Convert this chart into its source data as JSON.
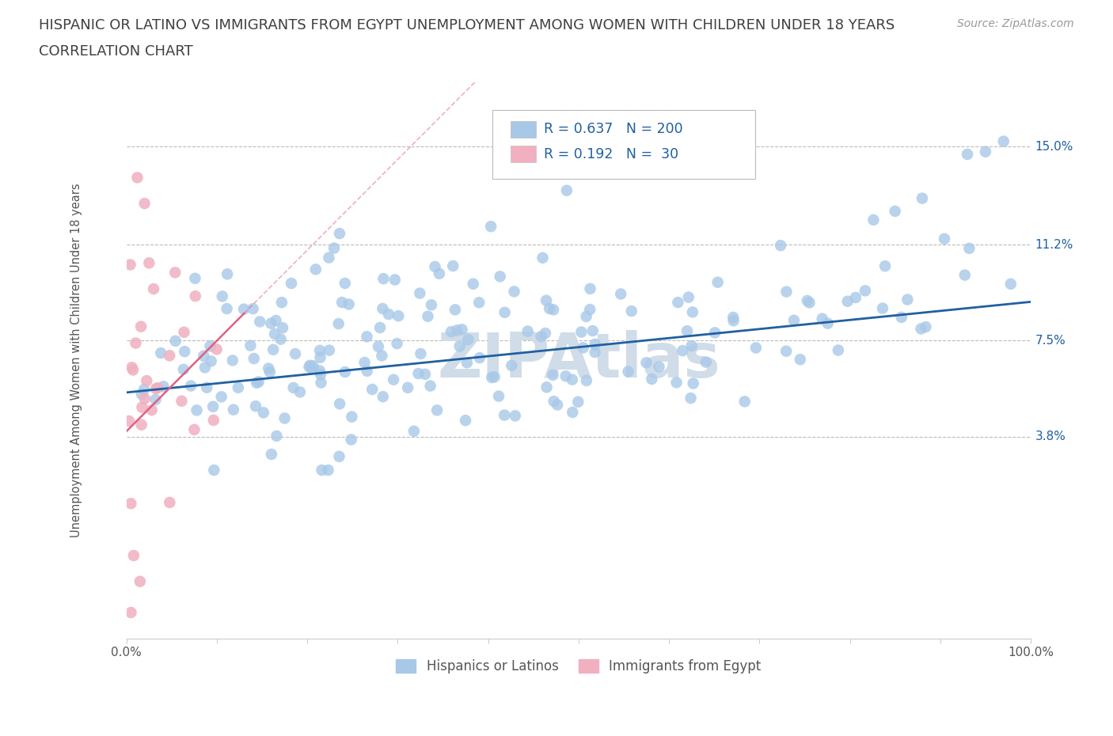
{
  "title_line1": "HISPANIC OR LATINO VS IMMIGRANTS FROM EGYPT UNEMPLOYMENT AMONG WOMEN WITH CHILDREN UNDER 18 YEARS",
  "title_line2": "CORRELATION CHART",
  "source": "Source: ZipAtlas.com",
  "ylabel": "Unemployment Among Women with Children Under 18 years",
  "xlim": [
    0,
    1.0
  ],
  "ylim": [
    -0.04,
    0.175
  ],
  "ytick_positions": [
    0.038,
    0.075,
    0.112,
    0.15
  ],
  "ytick_labels": [
    "3.8%",
    "7.5%",
    "11.2%",
    "15.0%"
  ],
  "hlines": [
    0.038,
    0.075,
    0.112,
    0.15
  ],
  "blue_color": "#a8c8e8",
  "pink_color": "#f0b0c0",
  "blue_line_color": "#2060a0",
  "pink_line_color": "#e06080",
  "R_blue": 0.637,
  "N_blue": 200,
  "R_pink": 0.192,
  "N_pink": 30,
  "title_color": "#404040",
  "title_fontsize": 13,
  "watermark": "ZIPAtlas",
  "watermark_color": "#d0dce8",
  "legend_label_blue": "Hispanics or Latinos",
  "legend_label_pink": "Immigrants from Egypt"
}
